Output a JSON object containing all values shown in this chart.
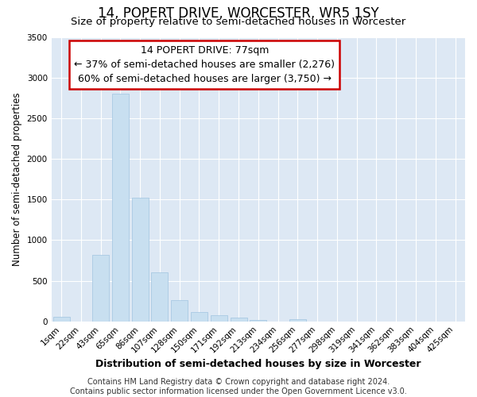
{
  "title": "14, POPERT DRIVE, WORCESTER, WR5 1SY",
  "subtitle": "Size of property relative to semi-detached houses in Worcester",
  "xlabel": "Distribution of semi-detached houses by size in Worcester",
  "ylabel": "Number of semi-detached properties",
  "footer_line1": "Contains HM Land Registry data © Crown copyright and database right 2024.",
  "footer_line2": "Contains public sector information licensed under the Open Government Licence v3.0.",
  "categories": [
    "1sqm",
    "22sqm",
    "43sqm",
    "65sqm",
    "86sqm",
    "107sqm",
    "128sqm",
    "150sqm",
    "171sqm",
    "192sqm",
    "213sqm",
    "234sqm",
    "256sqm",
    "277sqm",
    "298sqm",
    "319sqm",
    "341sqm",
    "362sqm",
    "383sqm",
    "404sqm",
    "425sqm"
  ],
  "values": [
    60,
    0,
    820,
    2800,
    1520,
    600,
    260,
    115,
    75,
    50,
    15,
    0,
    30,
    0,
    0,
    0,
    0,
    0,
    0,
    0,
    0
  ],
  "bar_color": "#c8dff0",
  "bar_edge_color": "#a0c4e0",
  "property_sqm": 77,
  "smaller_pct": 37,
  "smaller_count": 2276,
  "larger_pct": 60,
  "larger_count": 3750,
  "annotation_box_color": "#cc0000",
  "ylim": [
    0,
    3500
  ],
  "yticks": [
    0,
    500,
    1000,
    1500,
    2000,
    2500,
    3000,
    3500
  ],
  "background_color": "#ffffff",
  "plot_bg_color": "#dde8f4",
  "grid_color": "#ffffff",
  "title_fontsize": 12,
  "subtitle_fontsize": 9.5,
  "xlabel_fontsize": 9,
  "ylabel_fontsize": 8.5,
  "annotation_fontsize": 9,
  "tick_fontsize": 7.5,
  "footer_fontsize": 7.0
}
